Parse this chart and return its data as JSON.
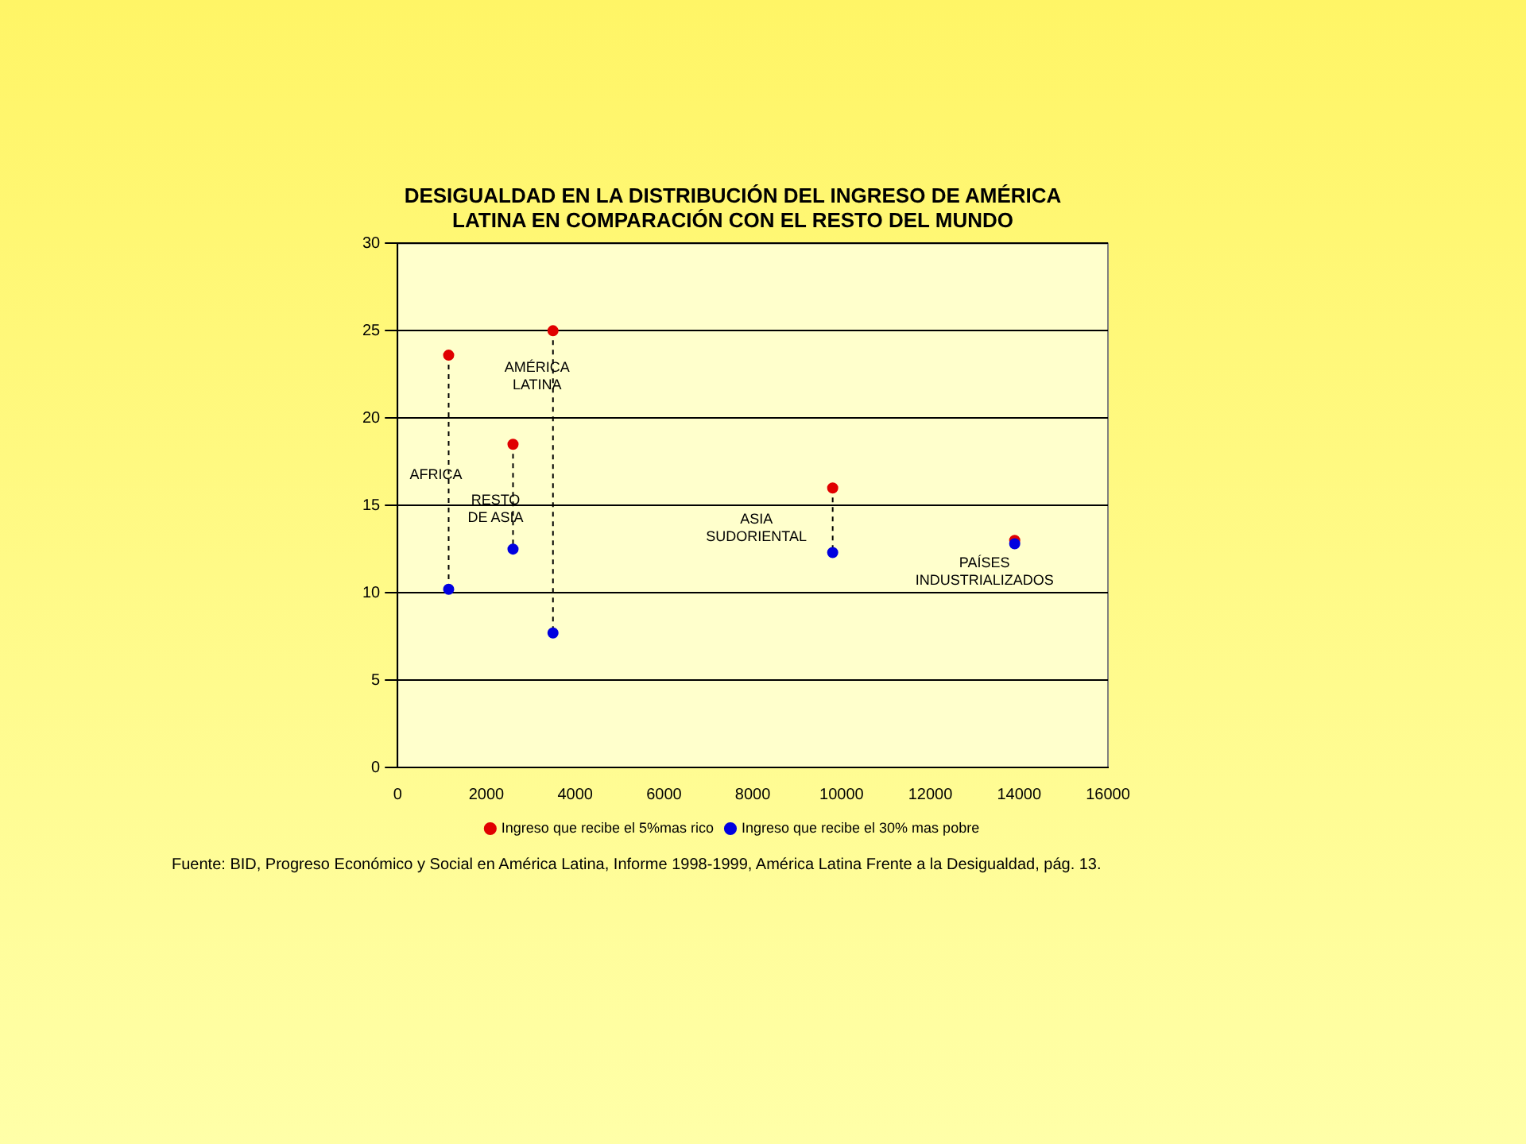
{
  "chart_data": {
    "type": "scatter",
    "title": [
      "DESIGUALDAD EN LA DISTRIBUCIÓN DEL INGRESO DE AMÉRICA",
      "LATINA EN COMPARACIÓN CON EL RESTO DEL MUNDO"
    ],
    "x": [
      1150,
      2600,
      3500,
      9800,
      13900
    ],
    "series": [
      {
        "name": "Ingreso que recibe el 5%mas rico",
        "color": "#e00000",
        "values": [
          23.6,
          18.5,
          25.0,
          16.0,
          13.0
        ]
      },
      {
        "name": "Ingreso que recibe el 30% mas pobre",
        "color": "#0000e0",
        "values": [
          10.2,
          12.5,
          7.7,
          12.3,
          12.8
        ]
      },
      {
        "type": "line",
        "color": "#000000",
        "line_style": "dashed",
        "marker": "none",
        "x": [
          1150,
          1150
        ],
        "values": [
          23.6,
          10.2
        ]
      },
      {
        "type": "line",
        "color": "#000000",
        "line_style": "dashed",
        "marker": "none",
        "x": [
          2600,
          2600
        ],
        "values": [
          18.5,
          12.5
        ]
      },
      {
        "type": "line",
        "color": "#000000",
        "line_style": "dashed",
        "marker": "none",
        "x": [
          3500,
          3500
        ],
        "values": [
          25.0,
          7.7
        ]
      },
      {
        "type": "line",
        "color": "#000000",
        "line_style": "dashed",
        "marker": "none",
        "x": [
          9800,
          9800
        ],
        "values": [
          16.0,
          12.3
        ]
      }
    ],
    "xlim": [
      0,
      16000
    ],
    "xticks": [
      0,
      2000,
      4000,
      6000,
      8000,
      10000,
      12000,
      14000,
      16000
    ],
    "ylim": [
      0,
      30
    ],
    "yticks": [
      0,
      5,
      10,
      15,
      20,
      25,
      30
    ],
    "grid": "y",
    "legend": "bottom",
    "marker": "circle",
    "annotations": [
      "AFRICA",
      "RESTO\nDE ASIA",
      "AMÉRICA\nLATINA",
      "ASIA\nSUDORIENTAL",
      "PAÍSES\nINDUSTRIALIZADOS",
      "Fuente: BID, Progreso Económico y Social en América Latina, Informe 1998-1999, América Latina Frente a la Desigualdad, pág. 13."
    ]
  }
}
